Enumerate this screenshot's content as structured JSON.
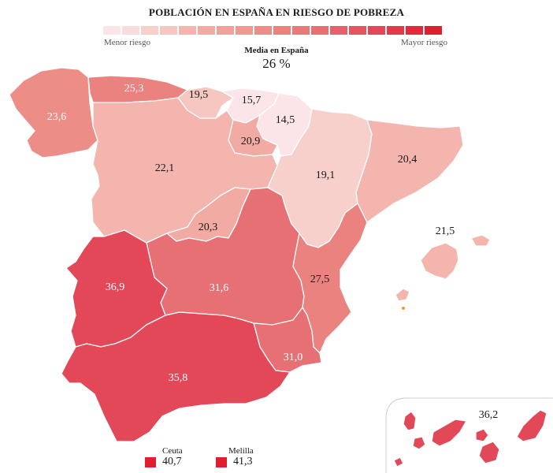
{
  "title": "POBLACIÓN EN ESPAÑA EN RIESGO DE POBREZA",
  "legend": {
    "min_label": "Menor riesgo",
    "max_label": "Mayor riesgo",
    "colors": [
      "#fbe5e8",
      "#f9dcdd",
      "#f8d0cb",
      "#f6c6c0",
      "#f3b5ad",
      "#f1aba3",
      "#f0a29a",
      "#ee9a92",
      "#ec8d87",
      "#ea837f",
      "#e87a7a",
      "#e77074",
      "#e4626c",
      "#e35561",
      "#e24858",
      "#e13a4a",
      "#e02b3b",
      "#df1f2f"
    ]
  },
  "average": {
    "label": "Media en España",
    "value": "26 %"
  },
  "regions": [
    {
      "name": "Galicia",
      "value": "23,6",
      "color": "#ec8d87"
    },
    {
      "name": "Asturias",
      "value": "25,3",
      "color": "#ea837f"
    },
    {
      "name": "Cantabria",
      "value": "19,5",
      "color": "#f6c6c0"
    },
    {
      "name": "País Vasco",
      "value": "15,7",
      "color": "#fbe5e8"
    },
    {
      "name": "Navarra",
      "value": "14,5",
      "color": "#fbe5e8"
    },
    {
      "name": "La Rioja",
      "value": "20,9",
      "color": "#f1aba3"
    },
    {
      "name": "Castilla y León",
      "value": "22,1",
      "color": "#f3b5ad"
    },
    {
      "name": "Aragón",
      "value": "19,1",
      "color": "#f8d0cb"
    },
    {
      "name": "Cataluña",
      "value": "20,4",
      "color": "#f3b5ad"
    },
    {
      "name": "Madrid",
      "value": "20,3",
      "color": "#f1aba3"
    },
    {
      "name": "Baleares",
      "value": "21,5",
      "color": "#f3b5ad"
    },
    {
      "name": "Extremadura",
      "value": "36,9",
      "color": "#e24858"
    },
    {
      "name": "Castilla-La Mancha",
      "value": "31,6",
      "color": "#e77074"
    },
    {
      "name": "Comunidad Valenciana",
      "value": "27,5",
      "color": "#ea837f"
    },
    {
      "name": "Murcia",
      "value": "31,0",
      "color": "#e77074"
    },
    {
      "name": "Andalucía",
      "value": "35,8",
      "color": "#e24858"
    },
    {
      "name": "Canarias",
      "value": "36,2",
      "color": "#e24858"
    }
  ],
  "cities": [
    {
      "name": "Ceuta",
      "value": "40,7",
      "color": "#df1f2f"
    },
    {
      "name": "Melilla",
      "value": "41,3",
      "color": "#df1f2f"
    }
  ]
}
